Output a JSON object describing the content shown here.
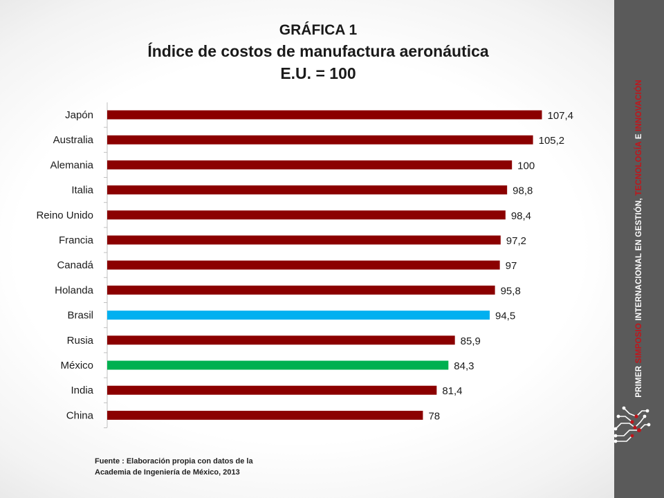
{
  "title": {
    "line1": "GRÁFICA 1",
    "line2": "Índice de costos de manufactura aeronáutica",
    "line3": "E.U. = 100"
  },
  "source": {
    "line1": "Fuente : Elaboración propia con datos de la",
    "line2": "Academia de Ingeniería de México, 2013"
  },
  "sidebar": {
    "w1": "PRIMER ",
    "r1": "SIMPOSIO",
    "w2": " INTERNACIONAL EN GESTIÓN, ",
    "r2": "TECNOLOGÍA",
    "w3": " E ",
    "r3": "INNOVACIÓN"
  },
  "colors": {
    "default_bar": "#8b0000",
    "brasil_bar": "#00b0f0",
    "mexico_bar": "#00b050",
    "sidebar_bg": "#5a5a5a",
    "accent_red": "#c0151b"
  },
  "chart_data": {
    "type": "bar",
    "orientation": "horizontal",
    "categories": [
      "Japón",
      "Australia",
      "Alemania",
      "Italia",
      "Reino Unido",
      "Francia",
      "Canadá",
      "Holanda",
      "Brasil",
      "Rusia",
      "México",
      "India",
      "China"
    ],
    "values": [
      107.4,
      105.2,
      100,
      98.8,
      98.4,
      97.2,
      97,
      95.8,
      94.5,
      85.9,
      84.3,
      81.4,
      78
    ],
    "data_labels": [
      "107,4",
      "105,2",
      "100",
      "98,8",
      "98,4",
      "97,2",
      "97",
      "95,8",
      "94,5",
      "85,9",
      "84,3",
      "81,4",
      "78"
    ],
    "bar_colors": [
      "#8b0000",
      "#8b0000",
      "#8b0000",
      "#8b0000",
      "#8b0000",
      "#8b0000",
      "#8b0000",
      "#8b0000",
      "#00b0f0",
      "#8b0000",
      "#00b050",
      "#8b0000",
      "#8b0000"
    ],
    "xlim": [
      0,
      108
    ],
    "grid": false,
    "legend": "none"
  }
}
